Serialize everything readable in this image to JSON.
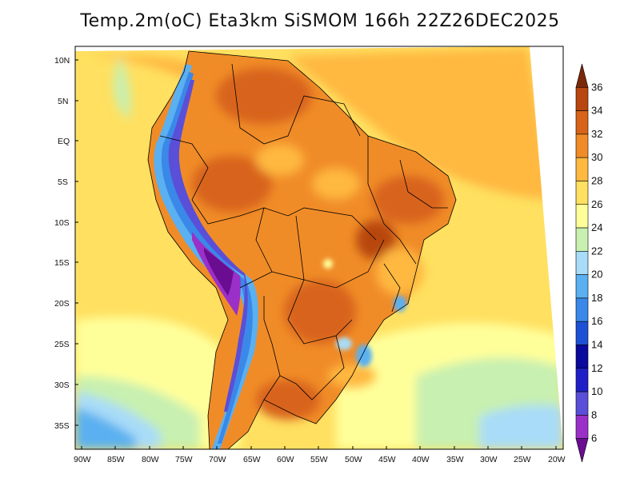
{
  "title": "Temp.2m(oC) Eta3km SiSMOM 166h 22Z26DEC2025",
  "map": {
    "lat_labels": [
      "10N",
      "5N",
      "EQ",
      "5S",
      "10S",
      "15S",
      "20S",
      "25S",
      "30S",
      "35S"
    ],
    "lon_labels": [
      "90W",
      "85W",
      "80W",
      "75W",
      "70W",
      "65W",
      "60W",
      "55W",
      "50W",
      "45W",
      "40W",
      "35W",
      "30W",
      "25W",
      "20W"
    ]
  },
  "colorbar": {
    "levels": [
      "6",
      "8",
      "10",
      "12",
      "14",
      "16",
      "18",
      "20",
      "22",
      "24",
      "26",
      "28",
      "30",
      "32",
      "34",
      "36"
    ],
    "colors": [
      "#6a0d91",
      "#9b30c8",
      "#5a4fd8",
      "#2020c8",
      "#0a0a9c",
      "#1e50d6",
      "#3a88e8",
      "#5ab0f0",
      "#a8dcf8",
      "#c8f0b0",
      "#ffff9a",
      "#ffe060",
      "#ffb840",
      "#f08c28",
      "#d8641a",
      "#b8460e",
      "#7a2808"
    ]
  }
}
